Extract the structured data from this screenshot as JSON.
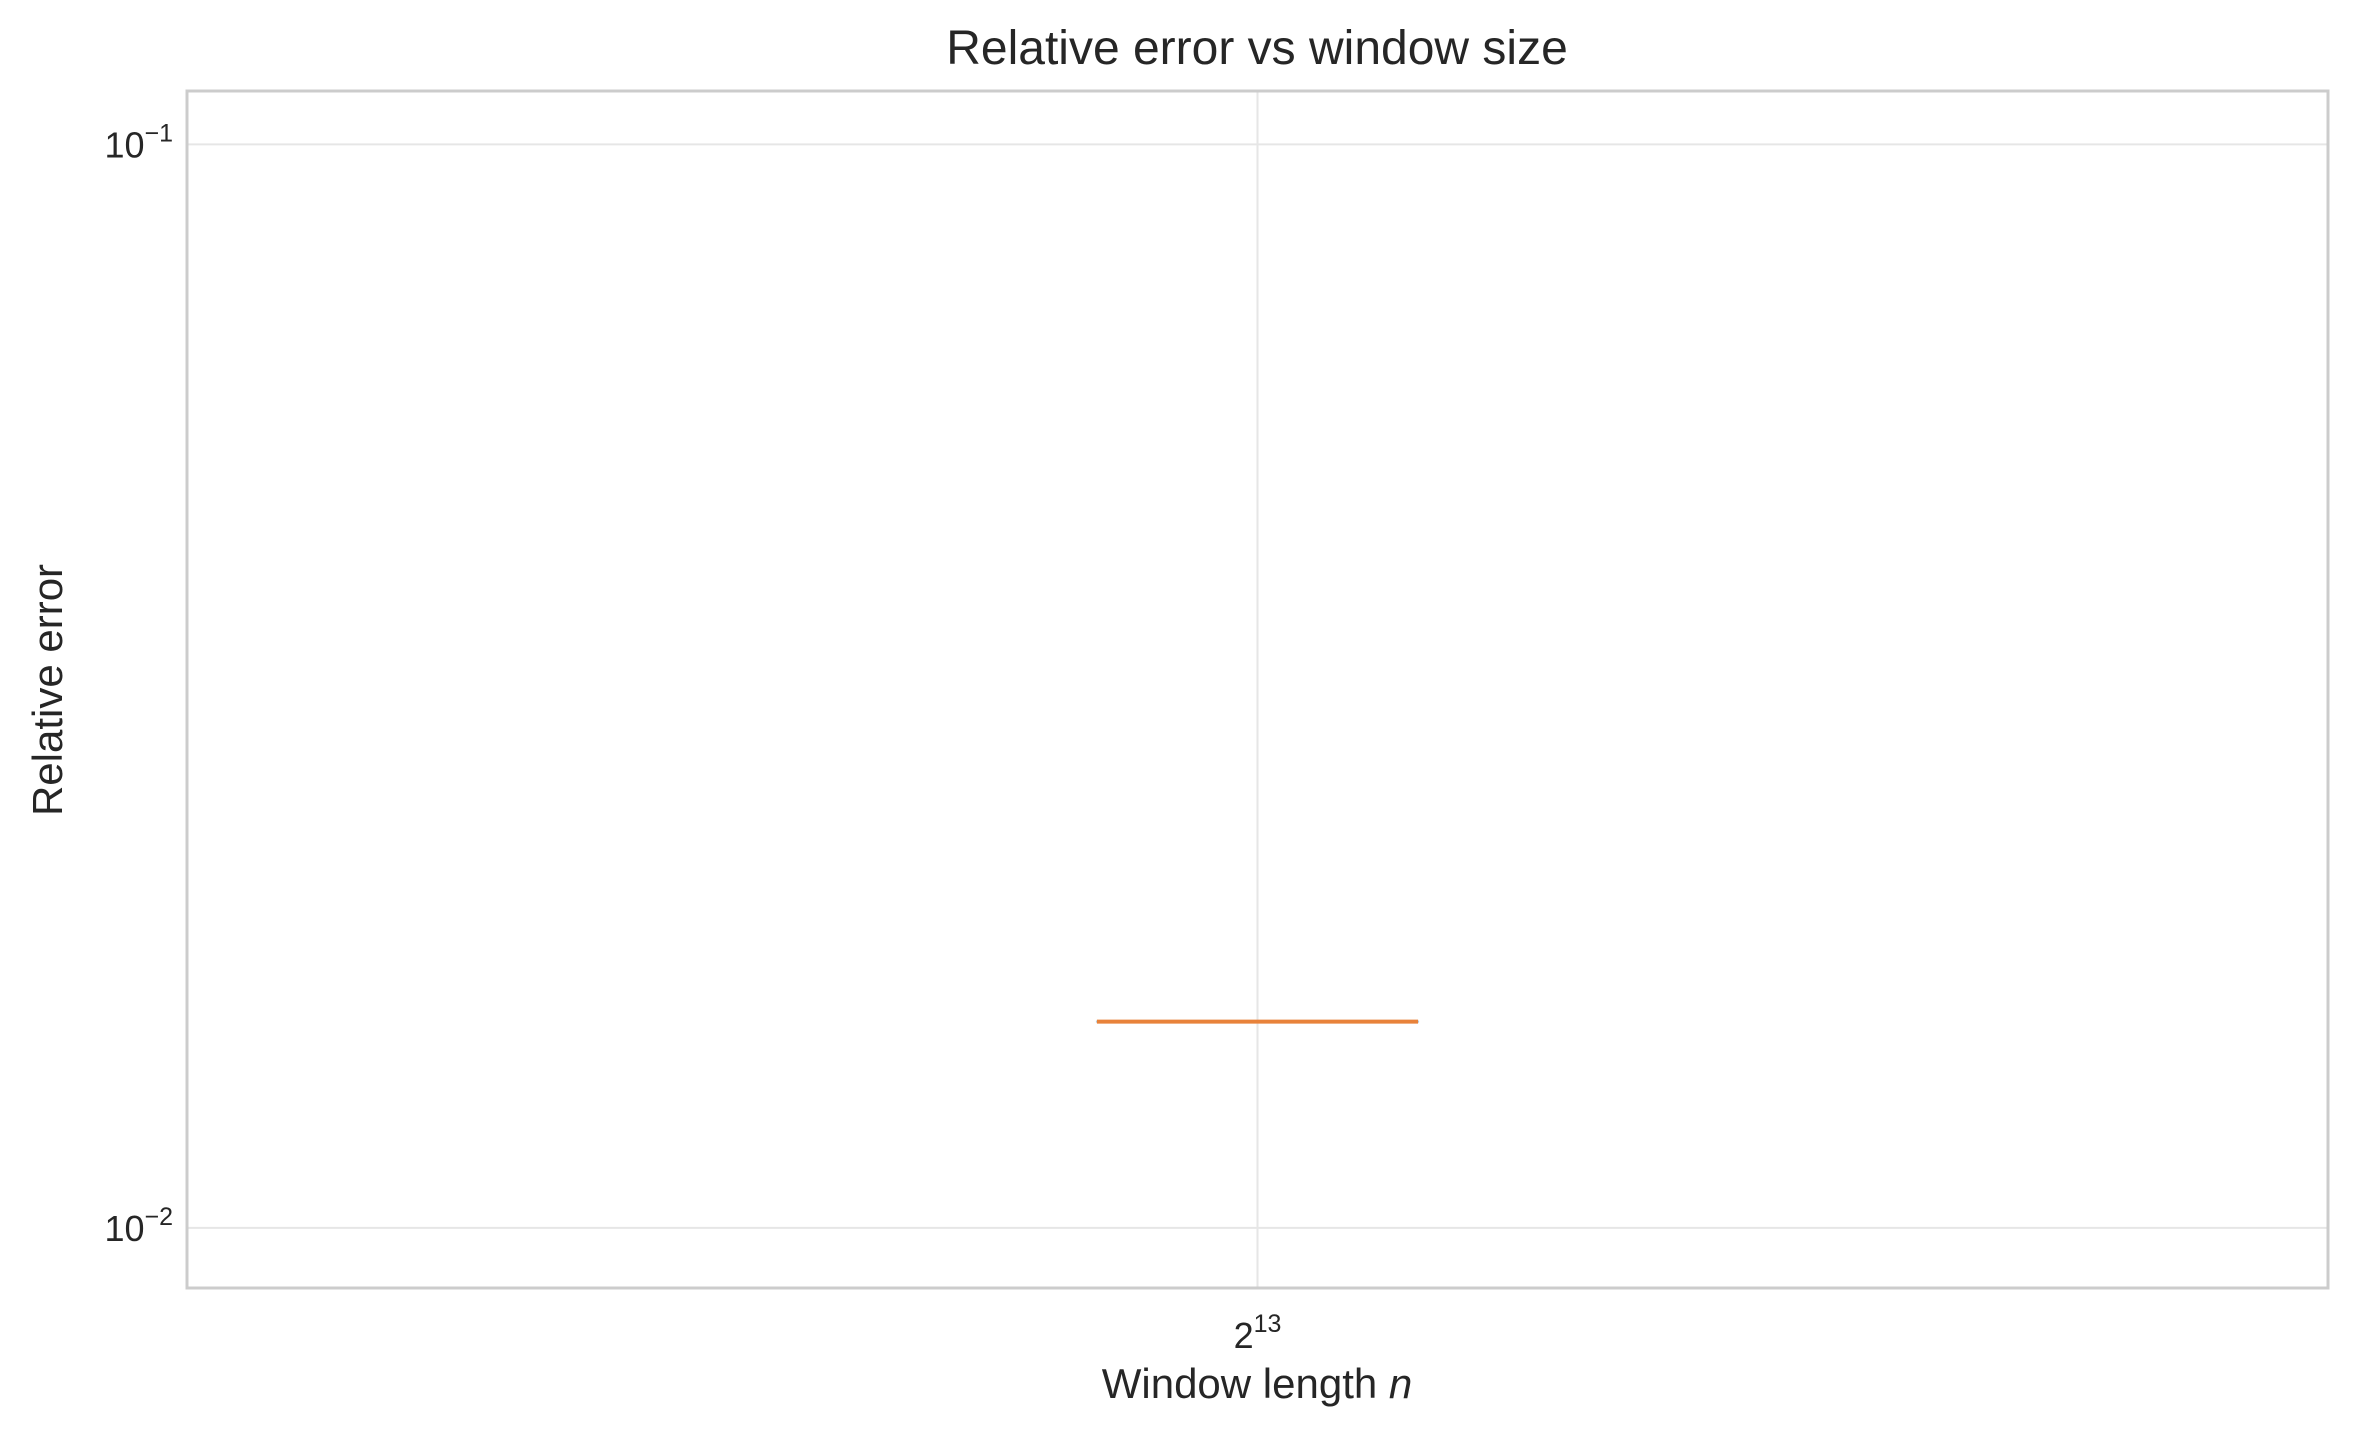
{
  "chart_data": {
    "type": "box",
    "title": "Relative error vs window size",
    "xlabel_text": "Window length ",
    "xlabel_var": "n",
    "ylabel": "Relative error",
    "yscale": "log",
    "ylim": [
      0.0088,
      0.112
    ],
    "grid": true,
    "categories": [
      {
        "base": "2",
        "exp": "13"
      }
    ],
    "yticks": [
      {
        "value": 0.1,
        "base": "10",
        "exp": "−1"
      },
      {
        "value": 0.01,
        "base": "10",
        "exp": "−2"
      }
    ],
    "boxes": [
      {
        "category_index": 0,
        "median": 0.0155,
        "q1": 0.0155,
        "q3": 0.0155,
        "whisker_low": 0.0155,
        "whisker_high": 0.0155
      }
    ],
    "colors": {
      "median": "#e8823a",
      "box": "#1f77b4",
      "frame": "#cccccc",
      "grid": "#e6e6e6"
    }
  }
}
